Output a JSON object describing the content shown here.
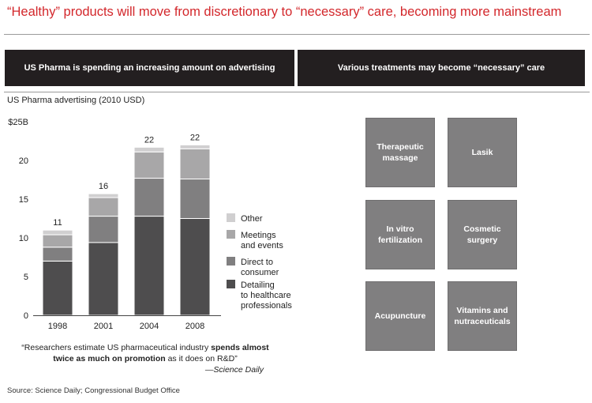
{
  "header": {
    "title": "“Healthy” products will move from discretionary to “necessary” care, becoming more mainstream"
  },
  "left_panel": {
    "header": "US Pharma is spending an increasing amount on advertising",
    "subtitle": "US Pharma advertising (2010 USD)",
    "quote": {
      "part1": "“Researchers estimate US pharmaceutical industry ",
      "bold": "spends almost twice as much on promotion",
      "part2": " as it does on R&D”",
      "attribution": "—Science Daily"
    }
  },
  "right_panel": {
    "header": "Various treatments may become “necessary” care",
    "tiles": [
      {
        "lines": [
          "Therapeutic",
          "massage"
        ]
      },
      {
        "lines": [
          "Lasik"
        ]
      },
      {
        "lines": [
          "In vitro",
          "fertilization"
        ]
      },
      {
        "lines": [
          "Cosmetic",
          "surgery"
        ]
      },
      {
        "lines": [
          "Acupuncture"
        ]
      },
      {
        "lines": [
          "Vitamins and",
          "nutraceuticals"
        ]
      }
    ]
  },
  "footer": {
    "source": "Source: Science Daily; Congressional Budget Office"
  },
  "colors": {
    "title_red": "#d3272b",
    "header_bg": "#231f20",
    "tile_gray": "#807f80",
    "other": "#d0cfd0",
    "meetings": "#a8a7a8",
    "direct": "#807f80",
    "detailing": "#4e4d4e"
  },
  "chart_data": {
    "type": "bar",
    "stacked": true,
    "title": "US Pharma advertising (2010 USD)",
    "xlabel": "",
    "ylabel": "",
    "ylim": [
      0,
      25
    ],
    "yticks": [
      0,
      5,
      10,
      15,
      20,
      25
    ],
    "ytick_labels": [
      "0",
      "5",
      "10",
      "15",
      "20",
      "$25B"
    ],
    "categories": [
      "1998",
      "2001",
      "2004",
      "2008"
    ],
    "totals": [
      11,
      16,
      22,
      22
    ],
    "series": [
      {
        "name": "Detailing to healthcare professionals",
        "legend_lines": [
          "Detailing",
          "to healthcare",
          "professionals"
        ],
        "color": "#4e4d4e",
        "values": [
          7.0,
          9.4,
          12.8,
          12.5
        ]
      },
      {
        "name": "Direct to consumer",
        "legend_lines": [
          "Direct to",
          "consumer"
        ],
        "color": "#807f80",
        "values": [
          1.8,
          3.4,
          4.9,
          5.1
        ]
      },
      {
        "name": "Meetings and events",
        "legend_lines": [
          "Meetings",
          "and events"
        ],
        "color": "#a8a7a8",
        "values": [
          1.6,
          2.4,
          3.4,
          3.9
        ]
      },
      {
        "name": "Other",
        "legend_lines": [
          "Other"
        ],
        "color": "#d0cfd0",
        "values": [
          0.6,
          0.5,
          0.6,
          0.5
        ]
      }
    ],
    "legend": "right"
  }
}
